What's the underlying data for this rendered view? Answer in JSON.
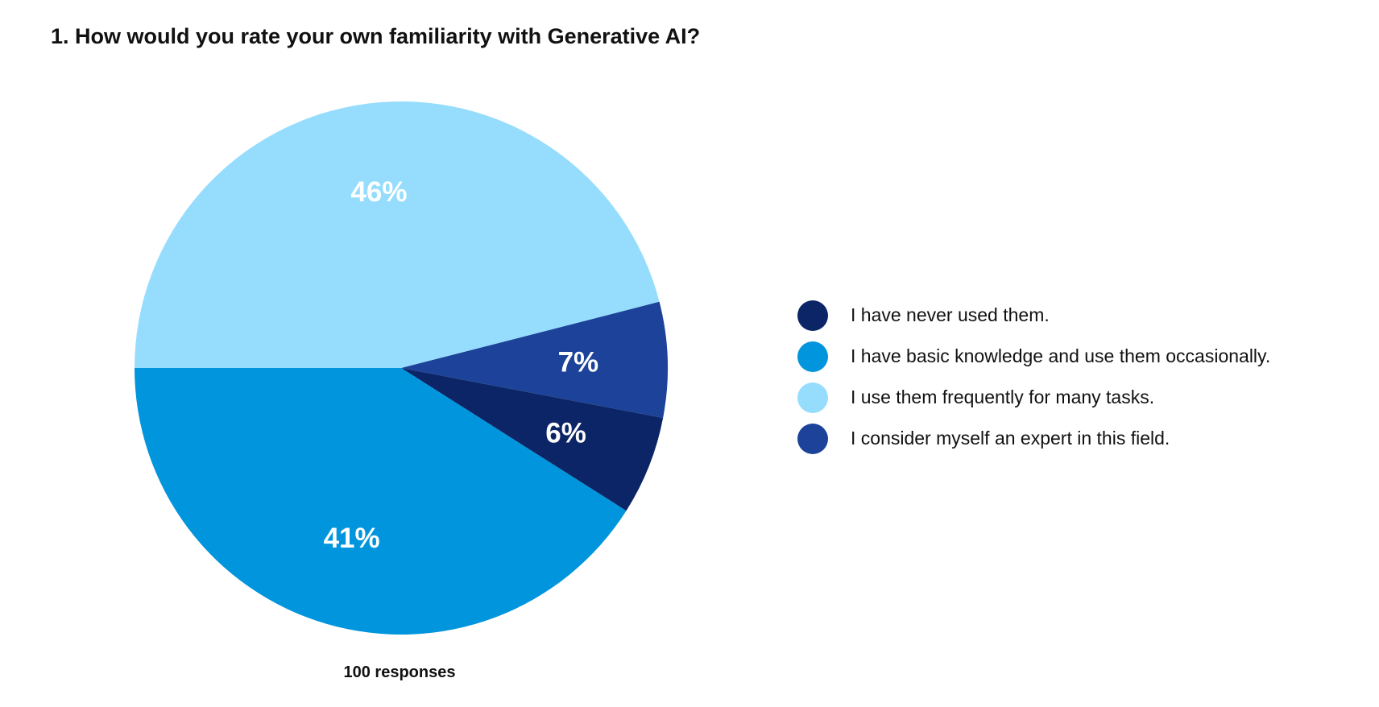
{
  "chart_data": {
    "type": "pie",
    "title": "1. How would you rate your own familiarity with Generative AI?",
    "footnote": "100 responses",
    "legend_position": "right",
    "slices": [
      {
        "label": "I have never used them.",
        "value": 6,
        "display": "6%",
        "color": "#0B2566"
      },
      {
        "label": "I have basic knowledge and use them occasionally.",
        "value": 41,
        "display": "41%",
        "color": "#0095DC"
      },
      {
        "label": "I use them frequently for many tasks.",
        "value": 46,
        "display": "46%",
        "color": "#96DDFD"
      },
      {
        "label": "I consider myself an expert in this field.",
        "value": 7,
        "display": "7%",
        "color": "#1C4399"
      }
    ],
    "draw_order": [
      3,
      0,
      1,
      2
    ]
  }
}
